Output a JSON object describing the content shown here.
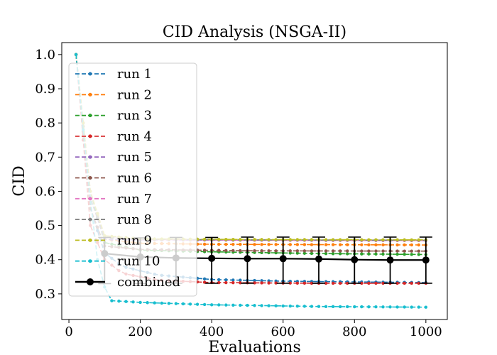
{
  "chart_data": {
    "type": "line",
    "title": "CID Analysis (NSGA-II)",
    "xlabel": "Evaluations",
    "ylabel": "CID",
    "xlim": [
      -20,
      1060
    ],
    "ylim": [
      0.225,
      1.035
    ],
    "xticks": [
      0,
      200,
      400,
      600,
      800,
      1000
    ],
    "yticks": [
      0.3,
      0.4,
      0.5,
      0.6,
      0.7,
      0.8,
      0.9,
      1.0
    ],
    "xtick_labels": [
      "0",
      "200",
      "400",
      "600",
      "800",
      "1000"
    ],
    "ytick_labels": [
      "0.3",
      "0.4",
      "0.5",
      "0.6",
      "0.7",
      "0.8",
      "0.9",
      "1.0"
    ],
    "grid": false,
    "legend_position": "upper-left",
    "run_x": [
      20,
      1000
    ],
    "series": [
      {
        "name": "run 1",
        "color": "#1f77b4",
        "keys": [
          [
            20,
            1.0
          ],
          [
            60,
            0.55
          ],
          [
            100,
            0.42
          ],
          [
            150,
            0.38
          ],
          [
            250,
            0.355
          ],
          [
            400,
            0.342
          ],
          [
            600,
            0.337
          ],
          [
            800,
            0.335
          ],
          [
            1000,
            0.333
          ]
        ]
      },
      {
        "name": "run 2",
        "color": "#ff7f0e",
        "keys": [
          [
            20,
            1.0
          ],
          [
            60,
            0.6
          ],
          [
            100,
            0.46
          ],
          [
            200,
            0.448
          ],
          [
            400,
            0.445
          ],
          [
            700,
            0.444
          ],
          [
            1000,
            0.443
          ]
        ]
      },
      {
        "name": "run 3",
        "color": "#2ca02c",
        "keys": [
          [
            20,
            1.0
          ],
          [
            60,
            0.6
          ],
          [
            100,
            0.45
          ],
          [
            200,
            0.428
          ],
          [
            400,
            0.423
          ],
          [
            700,
            0.418
          ],
          [
            1000,
            0.415
          ]
        ]
      },
      {
        "name": "run 4",
        "color": "#d62728",
        "keys": [
          [
            20,
            1.0
          ],
          [
            60,
            0.5
          ],
          [
            100,
            0.4
          ],
          [
            150,
            0.36
          ],
          [
            250,
            0.34
          ],
          [
            400,
            0.333
          ],
          [
            700,
            0.331
          ],
          [
            1000,
            0.331
          ]
        ]
      },
      {
        "name": "run 5",
        "color": "#9467bd",
        "keys": [
          [
            20,
            1.0
          ],
          [
            60,
            0.58
          ],
          [
            100,
            0.46
          ],
          [
            200,
            0.458
          ],
          [
            500,
            0.457
          ],
          [
            1000,
            0.456
          ]
        ]
      },
      {
        "name": "run 6",
        "color": "#8c564b",
        "keys": [
          [
            20,
            1.0
          ],
          [
            60,
            0.55
          ],
          [
            100,
            0.44
          ],
          [
            200,
            0.43
          ],
          [
            500,
            0.426
          ],
          [
            1000,
            0.425
          ]
        ]
      },
      {
        "name": "run 7",
        "color": "#e377c2",
        "keys": [
          [
            20,
            1.0
          ],
          [
            60,
            0.6
          ],
          [
            100,
            0.47
          ],
          [
            200,
            0.459
          ],
          [
            500,
            0.457
          ],
          [
            1000,
            0.456
          ]
        ]
      },
      {
        "name": "run 8",
        "color": "#7f7f7f",
        "keys": [
          [
            20,
            1.0
          ],
          [
            60,
            0.58
          ],
          [
            100,
            0.465
          ],
          [
            200,
            0.46
          ],
          [
            500,
            0.458
          ],
          [
            1000,
            0.457
          ]
        ]
      },
      {
        "name": "run 9",
        "color": "#bcbd22",
        "keys": [
          [
            20,
            1.0
          ],
          [
            60,
            0.6
          ],
          [
            100,
            0.47
          ],
          [
            200,
            0.461
          ],
          [
            500,
            0.459
          ],
          [
            1000,
            0.458
          ]
        ]
      },
      {
        "name": "run 10",
        "color": "#17becf",
        "keys": [
          [
            20,
            1.0
          ],
          [
            40,
            0.78
          ],
          [
            60,
            0.58
          ],
          [
            80,
            0.4
          ],
          [
            100,
            0.32
          ],
          [
            120,
            0.28
          ],
          [
            200,
            0.275
          ],
          [
            400,
            0.268
          ],
          [
            700,
            0.263
          ],
          [
            1000,
            0.261
          ]
        ]
      }
    ],
    "combined": {
      "name": "combined",
      "color": "#000000",
      "x": [
        100,
        200,
        300,
        400,
        500,
        600,
        700,
        800,
        900,
        1000
      ],
      "y": [
        0.418,
        0.408,
        0.405,
        0.404,
        0.403,
        0.403,
        0.402,
        0.4,
        0.399,
        0.399
      ],
      "err_low": [
        0.33,
        0.33,
        0.331,
        0.331,
        0.331,
        0.331,
        0.331,
        0.331,
        0.331,
        0.331
      ],
      "err_high": [
        0.465,
        0.464,
        0.465,
        0.465,
        0.466,
        0.466,
        0.466,
        0.466,
        0.466,
        0.466
      ]
    }
  }
}
